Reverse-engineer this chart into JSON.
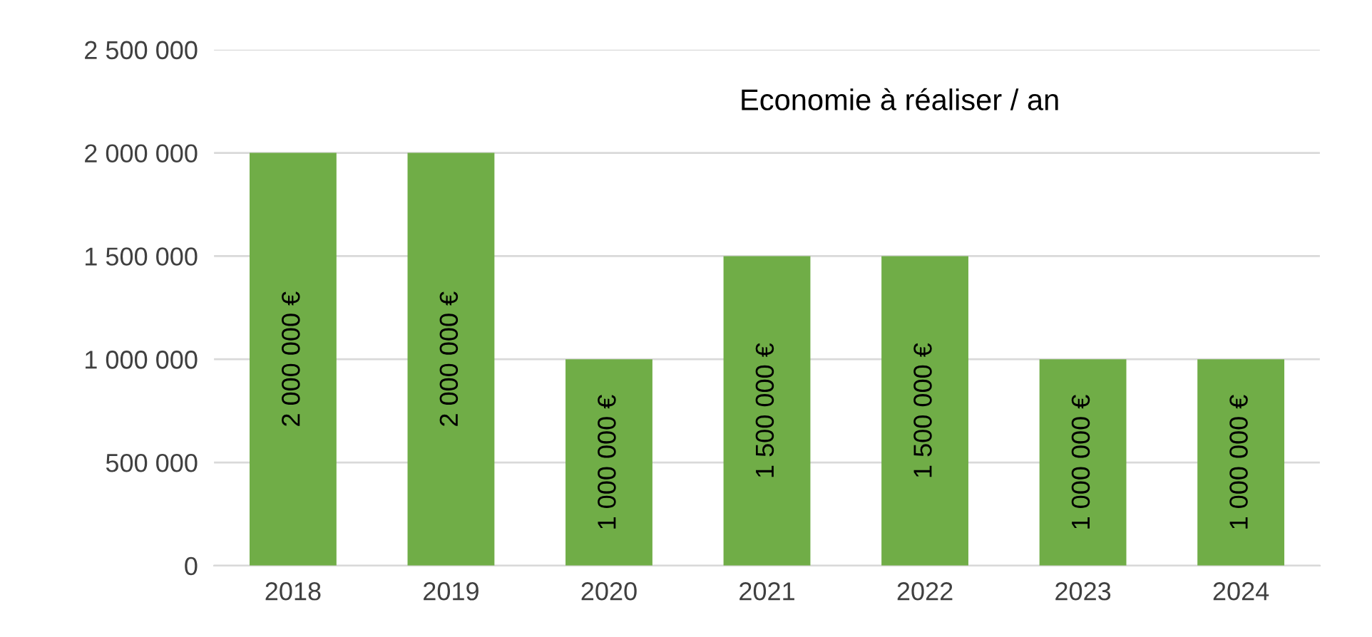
{
  "chart_data": {
    "type": "bar",
    "title": "Economie à réaliser / an",
    "categories": [
      "2018",
      "2019",
      "2020",
      "2021",
      "2022",
      "2023",
      "2024"
    ],
    "values": [
      2000000,
      2000000,
      1000000,
      1500000,
      1500000,
      1000000,
      1000000
    ],
    "value_labels": [
      "2 000 000 €",
      "2 000 000 €",
      "1 000 000 €",
      "1 500 000 €",
      "1 500 000 €",
      "1 000 000 €",
      "1 000 000 €"
    ],
    "color": "#70ad47",
    "ylim": [
      0,
      2500000
    ],
    "yticks": [
      {
        "value": 0,
        "label": "0"
      },
      {
        "value": 500000,
        "label": "500 000"
      },
      {
        "value": 1000000,
        "label": "1 000 000"
      },
      {
        "value": 1500000,
        "label": "1 500 000"
      },
      {
        "value": 2000000,
        "label": "2 000 000"
      },
      {
        "value": 2500000,
        "label": "2 500 000"
      }
    ],
    "grid": "y",
    "legend": false
  }
}
